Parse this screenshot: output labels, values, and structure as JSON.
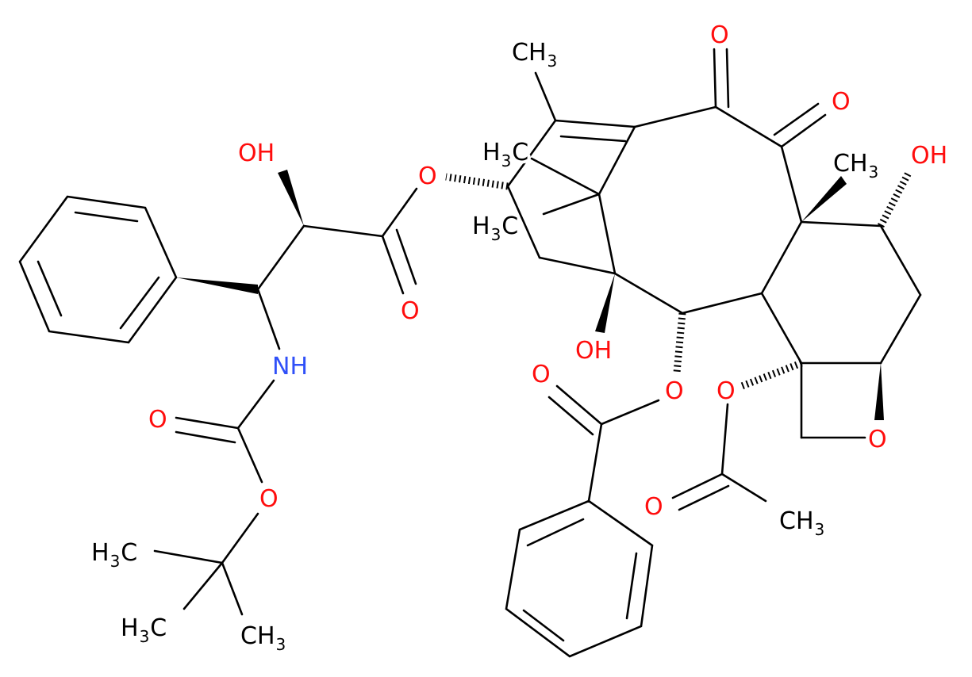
{
  "atoms": [
    {
      "parts": [
        "CH",
        "3"
      ],
      "color": "#000000"
    },
    {
      "parts": [
        "O"
      ],
      "color": "#ff0d0d"
    },
    {
      "parts": [
        "O"
      ],
      "color": "#ff0d0d"
    },
    {
      "parts": [
        "OH"
      ],
      "color": "#ff0d0d"
    },
    {
      "parts": [
        "O"
      ],
      "color": "#ff0d0d"
    },
    {
      "parts": [
        "H",
        "3",
        "C"
      ],
      "color": "#000000"
    },
    {
      "parts": [
        "H",
        "3",
        "C"
      ],
      "color": "#000000"
    },
    {
      "parts": [
        "CH",
        "3"
      ],
      "color": "#000000"
    },
    {
      "parts": [
        "OH"
      ],
      "color": "#ff0d0d"
    },
    {
      "parts": [
        "O"
      ],
      "color": "#ff0d0d"
    },
    {
      "parts": [
        "NH"
      ],
      "color": "#3050f8"
    },
    {
      "parts": [
        "OH"
      ],
      "color": "#ff0d0d"
    },
    {
      "parts": [
        "O"
      ],
      "color": "#ff0d0d"
    },
    {
      "parts": [
        "O"
      ],
      "color": "#ff0d0d"
    },
    {
      "parts": [
        "O"
      ],
      "color": "#ff0d0d"
    },
    {
      "parts": [
        "O"
      ],
      "color": "#ff0d0d"
    },
    {
      "parts": [
        "O"
      ],
      "color": "#ff0d0d"
    },
    {
      "parts": [
        "O"
      ],
      "color": "#ff0d0d"
    },
    {
      "parts": [
        "O"
      ],
      "color": "#ff0d0d"
    },
    {
      "parts": [
        "CH",
        "3"
      ],
      "color": "#000000"
    },
    {
      "parts": [
        "H",
        "3",
        "C"
      ],
      "color": "#000000"
    },
    {
      "parts": [
        "H",
        "3",
        "C"
      ],
      "color": "#000000"
    },
    {
      "parts": [
        "CH",
        "3"
      ],
      "color": "#000000"
    }
  ]
}
